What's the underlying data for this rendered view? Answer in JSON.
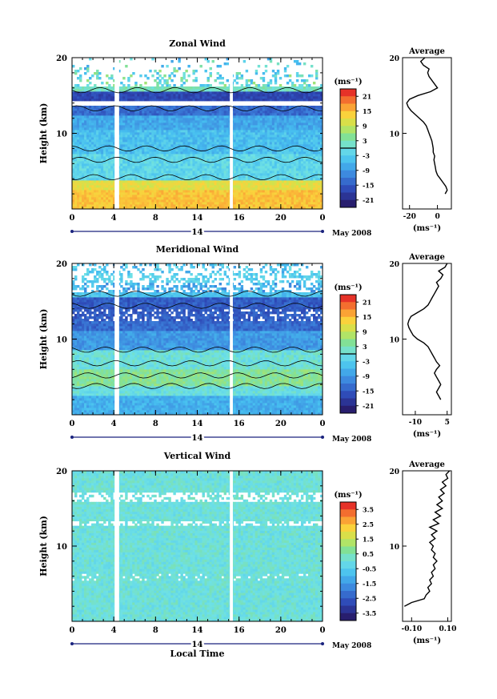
{
  "chart_data": [
    {
      "type": "heatmap",
      "title": "Zonal Wind",
      "ylabel": "Height (km)",
      "xlabel": "",
      "x_ticks": [
        "0",
        "4",
        "8",
        "14",
        "16",
        "20",
        "0"
      ],
      "y_ticks": [
        "20",
        "10"
      ],
      "date_label": "14",
      "month_label": "May 2008",
      "colorbar": {
        "unit": "(ms⁻¹)",
        "ticks": [
          "21",
          "15",
          "9",
          "3",
          "-3",
          "-9",
          "-15",
          "-21"
        ],
        "range": [
          -24,
          24
        ]
      },
      "profile": {
        "title": "Average",
        "x_ticks": [
          "-20",
          "0"
        ],
        "x_unit": "(ms⁻¹)",
        "y_ticks": [
          "20",
          "10"
        ],
        "xlim": [
          -25,
          10
        ],
        "points": [
          [
            5.5,
            2
          ],
          [
            7,
            2.5
          ],
          [
            6,
            3
          ],
          [
            4,
            3.5
          ],
          [
            2,
            4
          ],
          [
            0,
            4.5
          ],
          [
            -1,
            5
          ],
          [
            -1.5,
            5.5
          ],
          [
            -2,
            6
          ],
          [
            -2.5,
            6.5
          ],
          [
            -2,
            7
          ],
          [
            -3,
            7.5
          ],
          [
            -3,
            8
          ],
          [
            -3.5,
            8.5
          ],
          [
            -4,
            9
          ],
          [
            -5,
            9.5
          ],
          [
            -6,
            10
          ],
          [
            -7,
            10.5
          ],
          [
            -8,
            11
          ],
          [
            -10,
            11.5
          ],
          [
            -13,
            12
          ],
          [
            -16,
            12.5
          ],
          [
            -19,
            13
          ],
          [
            -21,
            13.5
          ],
          [
            -22,
            14
          ],
          [
            -20,
            14.5
          ],
          [
            -14,
            15
          ],
          [
            -5,
            15.5
          ],
          [
            0,
            16
          ],
          [
            -2,
            16.5
          ],
          [
            -4,
            17
          ],
          [
            -6,
            17.5
          ],
          [
            -7,
            18
          ],
          [
            -6,
            18.5
          ],
          [
            -10,
            19
          ],
          [
            -12,
            19.5
          ],
          [
            -9,
            20
          ]
        ]
      }
    },
    {
      "type": "heatmap",
      "title": "Meridional Wind",
      "ylabel": "Height (km)",
      "xlabel": "",
      "x_ticks": [
        "0",
        "4",
        "8",
        "14",
        "16",
        "20",
        "0"
      ],
      "y_ticks": [
        "20",
        "10"
      ],
      "date_label": "14",
      "month_label": "May 2008",
      "colorbar": {
        "unit": "(ms⁻¹)",
        "ticks": [
          "21",
          "15",
          "9",
          "3",
          "-3",
          "-9",
          "-15",
          "-21"
        ],
        "range": [
          -24,
          24
        ]
      },
      "profile": {
        "title": "Average",
        "x_ticks": [
          "-10",
          "5"
        ],
        "x_unit": "(ms⁻¹)",
        "y_ticks": [
          "20",
          "10"
        ],
        "xlim": [
          -16,
          7
        ],
        "points": [
          [
            2,
            2
          ],
          [
            1,
            2.5
          ],
          [
            0,
            3
          ],
          [
            1,
            3.5
          ],
          [
            2,
            4
          ],
          [
            1,
            4.5
          ],
          [
            0,
            5
          ],
          [
            -1,
            5.5
          ],
          [
            0,
            6
          ],
          [
            1.5,
            6.5
          ],
          [
            0,
            7
          ],
          [
            -1,
            7.5
          ],
          [
            -2,
            8
          ],
          [
            -3,
            8.5
          ],
          [
            -4,
            9
          ],
          [
            -6,
            9.5
          ],
          [
            -9,
            10
          ],
          [
            -11,
            10.5
          ],
          [
            -12,
            11
          ],
          [
            -13,
            11.5
          ],
          [
            -13.5,
            12
          ],
          [
            -13,
            12.5
          ],
          [
            -12,
            13
          ],
          [
            -9,
            13.5
          ],
          [
            -6,
            14
          ],
          [
            -4,
            14.5
          ],
          [
            -3,
            15
          ],
          [
            -2,
            15.5
          ],
          [
            -1,
            16
          ],
          [
            0,
            16.5
          ],
          [
            1,
            17
          ],
          [
            0,
            17.5
          ],
          [
            2,
            18
          ],
          [
            3,
            18.5
          ],
          [
            1,
            19
          ],
          [
            4,
            19.5
          ],
          [
            5,
            20
          ]
        ]
      }
    },
    {
      "type": "heatmap",
      "title": "Vertical Wind",
      "ylabel": "Height (km)",
      "xlabel": "Local Time",
      "x_ticks": [
        "0",
        "4",
        "8",
        "14",
        "16",
        "20",
        "0"
      ],
      "y_ticks": [
        "20",
        "10"
      ],
      "date_label": "14",
      "month_label": "May 2008",
      "colorbar": {
        "unit": "(ms⁻¹)",
        "ticks": [
          "3.5",
          "2.5",
          "1.5",
          "0.5",
          "-0.5",
          "-1.5",
          "-2.5",
          "-3.5"
        ],
        "range": [
          -4,
          4
        ]
      },
      "profile": {
        "title": "Average",
        "x_ticks": [
          "-0.10",
          "0.10"
        ],
        "x_unit": "(ms⁻¹)",
        "y_ticks": [
          "20",
          "10"
        ],
        "xlim": [
          -0.15,
          0.12
        ],
        "points": [
          [
            -0.14,
            2
          ],
          [
            -0.1,
            2.5
          ],
          [
            -0.03,
            3
          ],
          [
            -0.02,
            3.5
          ],
          [
            0,
            4
          ],
          [
            -0.01,
            4.5
          ],
          [
            0.01,
            5
          ],
          [
            0.0,
            5.5
          ],
          [
            0.02,
            6
          ],
          [
            0.01,
            6.5
          ],
          [
            0.03,
            7
          ],
          [
            0.02,
            7.5
          ],
          [
            0.04,
            8
          ],
          [
            0.02,
            8.5
          ],
          [
            0.03,
            9
          ],
          [
            0.01,
            9.5
          ],
          [
            0.02,
            10
          ],
          [
            0.0,
            10.5
          ],
          [
            0.03,
            11
          ],
          [
            0.01,
            11.5
          ],
          [
            0.04,
            12
          ],
          [
            0.0,
            12.5
          ],
          [
            0.05,
            13
          ],
          [
            0.02,
            13.5
          ],
          [
            0.06,
            14
          ],
          [
            0.03,
            14.5
          ],
          [
            0.07,
            15
          ],
          [
            0.04,
            15.5
          ],
          [
            0.07,
            16
          ],
          [
            0.05,
            16.5
          ],
          [
            0.08,
            17
          ],
          [
            0.06,
            17.5
          ],
          [
            0.09,
            18
          ],
          [
            0.07,
            18.5
          ],
          [
            0.1,
            19
          ],
          [
            0.09,
            19.5
          ],
          [
            0.11,
            20
          ]
        ]
      }
    }
  ]
}
